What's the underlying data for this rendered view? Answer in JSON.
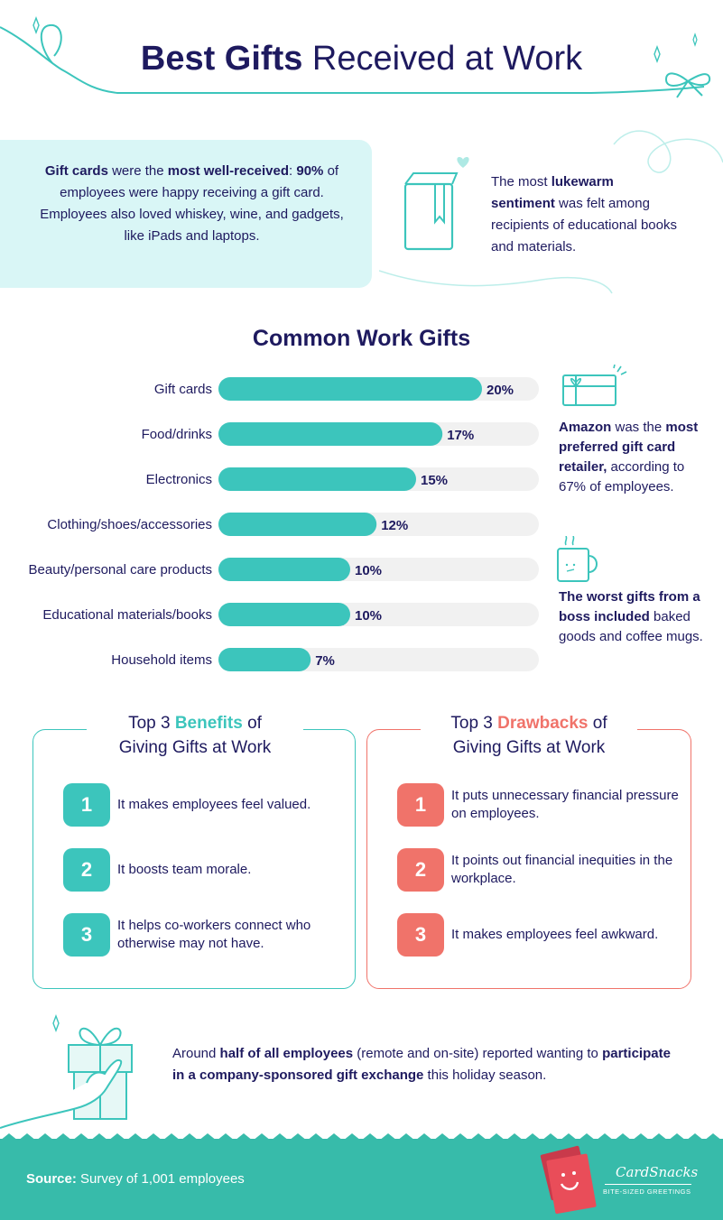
{
  "header": {
    "title_bold": "Best Gifts",
    "title_rest": " Received at Work"
  },
  "intro": {
    "left_p1_bold": "Gift cards",
    "left_p1_mid": " were the ",
    "left_p1_bold2": "most well-received",
    "left_p1_end": ":",
    "left_p2_bold": "90%",
    "left_p2_rest": " of employees were happy receiving a gift card. Employees also loved whiskey, wine, and gadgets, like iPads and laptops.",
    "right_pre": "The most ",
    "right_bold": "lukewarm sentiment",
    "right_rest": " was felt among recipients of educational books and materials."
  },
  "chart_data": {
    "type": "bar",
    "orientation": "horizontal",
    "title": "Common Work Gifts",
    "categories": [
      "Gift cards",
      "Food/drinks",
      "Electronics",
      "Clothing/shoes/accessories",
      "Beauty/personal care products",
      "Educational materials/books",
      "Household items"
    ],
    "values": [
      20,
      17,
      15,
      12,
      10,
      10,
      7
    ],
    "value_labels": [
      "20%",
      "17%",
      "15%",
      "12%",
      "10%",
      "10%",
      "7%"
    ],
    "xlim": [
      0,
      23
    ],
    "grid": false,
    "colors": {
      "bar": "#3cc5bc",
      "track": "#f1f1f1"
    }
  },
  "side_notes": {
    "amazon_bold1": "Amazon",
    "amazon_mid": " was the ",
    "amazon_bold2": "most preferred gift card retailer,",
    "amazon_rest": " according to 67% of employees.",
    "worst_bold": "The worst gifts from a boss included",
    "worst_rest": " baked goods and coffee mugs."
  },
  "benefits": {
    "title_pre": "Top 3 ",
    "title_accent": "Benefits",
    "title_post": " of",
    "title_line2": "Giving Gifts at Work",
    "items": [
      {
        "num": "1",
        "text": "It makes employees feel valued."
      },
      {
        "num": "2",
        "text": "It boosts team morale."
      },
      {
        "num": "3",
        "text": "It helps co-workers connect who otherwise may not have."
      }
    ]
  },
  "drawbacks": {
    "title_pre": "Top 3 ",
    "title_accent": "Drawbacks",
    "title_post": " of",
    "title_line2": "Giving Gifts at Work",
    "items": [
      {
        "num": "1",
        "text": "It puts unnecessary financial pressure on employees."
      },
      {
        "num": "2",
        "text": "It points out financial inequities in the workplace."
      },
      {
        "num": "3",
        "text": "It makes employees feel awkward."
      }
    ]
  },
  "bottom": {
    "pre": "Around ",
    "bold1": "half of all employees",
    "mid": " (remote and on-site) reported wanting to ",
    "bold2": "participate in a company-sponsored gift exchange",
    "rest": " this holiday season."
  },
  "footer": {
    "source_label": "Source:",
    "source_text": " Survey of 1,001 employees",
    "brand_name": "CardSnacks",
    "brand_tagline": "BITE-SIZED GREETINGS"
  },
  "colors": {
    "teal": "#3cc5bc",
    "coral": "#f0736a",
    "navy": "#1e1a5f",
    "panel": "#d9f6f6",
    "footer": "#37bbaa"
  }
}
